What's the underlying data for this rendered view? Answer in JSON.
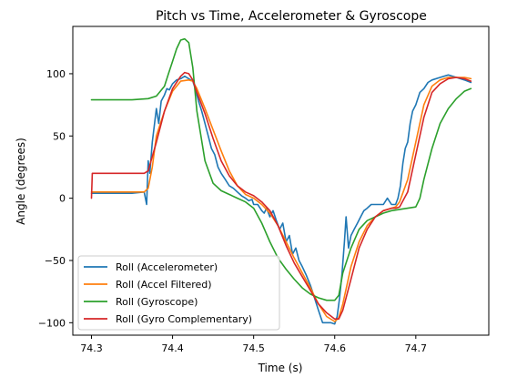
{
  "chart_data": {
    "type": "line",
    "title": "Pitch vs Time, Accelerometer & Gyroscope",
    "xlabel": "Time (s)",
    "ylabel": "Angle (degrees)",
    "xlim": [
      74.277,
      74.79
    ],
    "ylim": [
      -110.0,
      138.0
    ],
    "xticks": [
      74.3,
      74.4,
      74.5,
      74.6,
      74.7
    ],
    "xtick_labels": [
      "74.3",
      "74.4",
      "74.5",
      "74.6",
      "74.7"
    ],
    "yticks": [
      -100,
      -50,
      0,
      50,
      100
    ],
    "ytick_labels": [
      "−100",
      "−50",
      "0",
      "50",
      "100"
    ],
    "grid": false,
    "legend_position": "lower-left",
    "series": [
      {
        "name": "Roll (Accelerometer)",
        "color": "#1f77b4",
        "x": [
          74.3,
          74.31,
          74.33,
          74.35,
          74.365,
          74.368,
          74.37,
          74.372,
          74.375,
          74.38,
          74.383,
          74.386,
          74.39,
          74.393,
          74.396,
          74.4,
          74.405,
          74.41,
          74.415,
          74.42,
          74.425,
          74.428,
          74.432,
          74.436,
          74.44,
          74.444,
          74.448,
          74.452,
          74.456,
          74.46,
          74.465,
          74.47,
          74.475,
          74.48,
          74.485,
          74.49,
          74.494,
          74.498,
          74.5,
          74.505,
          74.51,
          74.513,
          74.516,
          74.52,
          74.524,
          74.528,
          74.532,
          74.536,
          74.54,
          74.544,
          74.548,
          74.552,
          74.556,
          74.56,
          74.565,
          74.57,
          74.575,
          74.58,
          74.585,
          74.59,
          74.595,
          74.6,
          74.603,
          74.606,
          74.609,
          74.612,
          74.614,
          74.617,
          74.62,
          74.624,
          74.628,
          74.632,
          74.636,
          74.64,
          74.645,
          74.65,
          74.655,
          74.66,
          74.665,
          74.67,
          74.675,
          74.678,
          74.681,
          74.684,
          74.687,
          74.69,
          74.693,
          74.696,
          74.7,
          74.705,
          74.71,
          74.715,
          74.72,
          74.73,
          74.74,
          74.75,
          74.76,
          74.768
        ],
        "y": [
          4,
          4,
          4,
          4,
          5,
          -5,
          30,
          20,
          45,
          72,
          60,
          78,
          83,
          88,
          87,
          92,
          95,
          96,
          98,
          96,
          94,
          88,
          78,
          70,
          60,
          50,
          40,
          35,
          25,
          20,
          15,
          10,
          8,
          5,
          2,
          0,
          -2,
          -1,
          -5,
          -5,
          -10,
          -12,
          -8,
          -15,
          -10,
          -18,
          -25,
          -20,
          -35,
          -30,
          -45,
          -40,
          -50,
          -55,
          -62,
          -70,
          -80,
          -90,
          -100,
          -100,
          -100,
          -101,
          -95,
          -80,
          -60,
          -35,
          -15,
          -40,
          -30,
          -25,
          -20,
          -15,
          -10,
          -8,
          -5,
          -5,
          -5,
          -5,
          0,
          -5,
          -5,
          0,
          10,
          28,
          40,
          45,
          60,
          70,
          75,
          85,
          88,
          93,
          95,
          97,
          99,
          97,
          95,
          93
        ]
      },
      {
        "name": "Roll (Accel Filtered)",
        "color": "#ff7f0e",
        "x": [
          74.3,
          74.365,
          74.37,
          74.375,
          74.38,
          74.39,
          74.4,
          74.41,
          74.42,
          74.425,
          74.43,
          74.44,
          74.45,
          74.46,
          74.47,
          74.48,
          74.49,
          74.5,
          74.51,
          74.52,
          74.53,
          74.54,
          74.55,
          74.56,
          74.57,
          74.58,
          74.59,
          74.6,
          74.605,
          74.61,
          74.62,
          74.63,
          74.64,
          74.65,
          74.66,
          74.67,
          74.675,
          74.68,
          74.69,
          74.7,
          74.71,
          74.72,
          74.73,
          74.74,
          74.75,
          74.76,
          74.768
        ],
        "y": [
          5,
          5,
          8,
          25,
          50,
          70,
          86,
          94,
          95,
          94,
          88,
          72,
          55,
          38,
          22,
          10,
          3,
          0,
          -5,
          -12,
          -22,
          -35,
          -48,
          -60,
          -72,
          -85,
          -95,
          -99,
          -96,
          -85,
          -55,
          -35,
          -22,
          -15,
          -10,
          -8,
          -7,
          -3,
          15,
          45,
          75,
          90,
          95,
          97,
          97,
          97,
          96
        ]
      },
      {
        "name": "Roll (Gyroscope)",
        "color": "#2ca02c",
        "x": [
          74.3,
          74.35,
          74.37,
          74.38,
          74.39,
          74.395,
          74.4,
          74.405,
          74.41,
          74.415,
          74.42,
          74.425,
          74.43,
          74.44,
          74.45,
          74.46,
          74.47,
          74.48,
          74.49,
          74.5,
          74.51,
          74.52,
          74.53,
          74.54,
          74.55,
          74.56,
          74.57,
          74.58,
          74.59,
          74.6,
          74.605,
          74.61,
          74.62,
          74.63,
          74.64,
          74.65,
          74.66,
          74.67,
          74.68,
          74.69,
          74.7,
          74.705,
          74.71,
          74.72,
          74.73,
          74.74,
          74.75,
          74.76,
          74.768
        ],
        "y": [
          79,
          79,
          80,
          82,
          90,
          100,
          110,
          120,
          127,
          128,
          125,
          105,
          70,
          30,
          12,
          6,
          3,
          0,
          -3,
          -8,
          -20,
          -35,
          -48,
          -57,
          -65,
          -72,
          -77,
          -80,
          -82,
          -82,
          -78,
          -60,
          -40,
          -25,
          -18,
          -15,
          -12,
          -10,
          -9,
          -8,
          -7,
          0,
          15,
          40,
          60,
          72,
          80,
          86,
          88
        ]
      },
      {
        "name": "Roll (Gyro Complementary)",
        "color": "#d62728",
        "x": [
          74.3,
          74.301,
          74.365,
          74.37,
          74.38,
          74.39,
          74.4,
          74.41,
          74.415,
          74.42,
          74.425,
          74.43,
          74.44,
          74.45,
          74.46,
          74.47,
          74.48,
          74.49,
          74.5,
          74.51,
          74.52,
          74.53,
          74.54,
          74.55,
          74.56,
          74.57,
          74.58,
          74.59,
          74.6,
          74.605,
          74.61,
          74.62,
          74.63,
          74.64,
          74.65,
          74.66,
          74.67,
          74.675,
          74.68,
          74.69,
          74.7,
          74.71,
          74.72,
          74.73,
          74.74,
          74.75,
          74.76,
          74.768
        ],
        "y": [
          0,
          20,
          20,
          22,
          45,
          70,
          88,
          98,
          101,
          100,
          95,
          85,
          68,
          48,
          30,
          18,
          10,
          5,
          2,
          -3,
          -10,
          -22,
          -38,
          -52,
          -63,
          -74,
          -85,
          -92,
          -97,
          -97,
          -90,
          -65,
          -40,
          -25,
          -15,
          -10,
          -8,
          -8,
          -7,
          5,
          35,
          65,
          85,
          92,
          96,
          97,
          96,
          94
        ]
      }
    ]
  }
}
